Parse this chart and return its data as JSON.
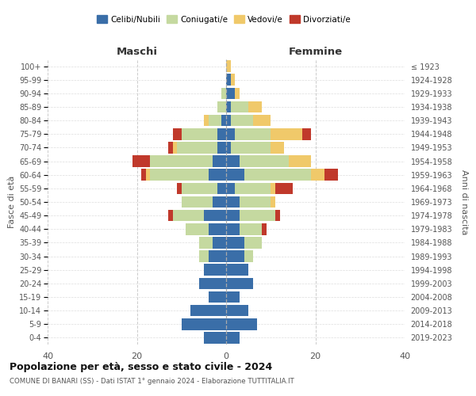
{
  "age_groups": [
    "0-4",
    "5-9",
    "10-14",
    "15-19",
    "20-24",
    "25-29",
    "30-34",
    "35-39",
    "40-44",
    "45-49",
    "50-54",
    "55-59",
    "60-64",
    "65-69",
    "70-74",
    "75-79",
    "80-84",
    "85-89",
    "90-94",
    "95-99",
    "100+"
  ],
  "birth_years": [
    "2019-2023",
    "2014-2018",
    "2009-2013",
    "2004-2008",
    "1999-2003",
    "1994-1998",
    "1989-1993",
    "1984-1988",
    "1979-1983",
    "1974-1978",
    "1969-1973",
    "1964-1968",
    "1959-1963",
    "1954-1958",
    "1949-1953",
    "1944-1948",
    "1939-1943",
    "1934-1938",
    "1929-1933",
    "1924-1928",
    "≤ 1923"
  ],
  "colors": {
    "celibi": "#3a6ea8",
    "coniugati": "#c5d9a0",
    "vedovi": "#f0c96a",
    "divorziati": "#c0392b"
  },
  "maschi": {
    "celibi": [
      5,
      10,
      8,
      4,
      6,
      5,
      4,
      3,
      4,
      5,
      3,
      2,
      4,
      3,
      2,
      2,
      1,
      0,
      0,
      0,
      0
    ],
    "coniugati": [
      0,
      0,
      0,
      0,
      0,
      0,
      2,
      3,
      5,
      7,
      7,
      8,
      13,
      14,
      9,
      8,
      3,
      2,
      1,
      0,
      0
    ],
    "vedovi": [
      0,
      0,
      0,
      0,
      0,
      0,
      0,
      0,
      0,
      0,
      0,
      0,
      1,
      0,
      1,
      0,
      1,
      0,
      0,
      0,
      0
    ],
    "divorziati": [
      0,
      0,
      0,
      0,
      0,
      0,
      0,
      0,
      0,
      1,
      0,
      1,
      1,
      4,
      1,
      2,
      0,
      0,
      0,
      0,
      0
    ]
  },
  "femmine": {
    "celibi": [
      3,
      7,
      5,
      3,
      6,
      5,
      4,
      4,
      3,
      3,
      3,
      2,
      4,
      3,
      1,
      2,
      1,
      1,
      2,
      1,
      0
    ],
    "coniugati": [
      0,
      0,
      0,
      0,
      0,
      0,
      2,
      4,
      5,
      8,
      7,
      8,
      15,
      11,
      9,
      8,
      5,
      4,
      0,
      0,
      0
    ],
    "vedovi": [
      0,
      0,
      0,
      0,
      0,
      0,
      0,
      0,
      0,
      0,
      1,
      1,
      3,
      5,
      3,
      7,
      4,
      3,
      1,
      1,
      1
    ],
    "divorziati": [
      0,
      0,
      0,
      0,
      0,
      0,
      0,
      0,
      1,
      1,
      0,
      4,
      3,
      0,
      0,
      2,
      0,
      0,
      0,
      0,
      0
    ]
  },
  "xlim": 40,
  "xlabel_left": "Maschi",
  "xlabel_right": "Femmine",
  "ylabel_left": "Fasce di età",
  "ylabel_right": "Anni di nascita",
  "title": "Popolazione per età, sesso e stato civile - 2024",
  "subtitle": "COMUNE DI BANARI (SS) - Dati ISTAT 1° gennaio 2024 - Elaborazione TUTTITALIA.IT",
  "legend_labels": [
    "Celibi/Nubili",
    "Coniugati/e",
    "Vedovi/e",
    "Divorziati/e"
  ],
  "xticks": [
    -40,
    -20,
    0,
    20,
    40
  ]
}
